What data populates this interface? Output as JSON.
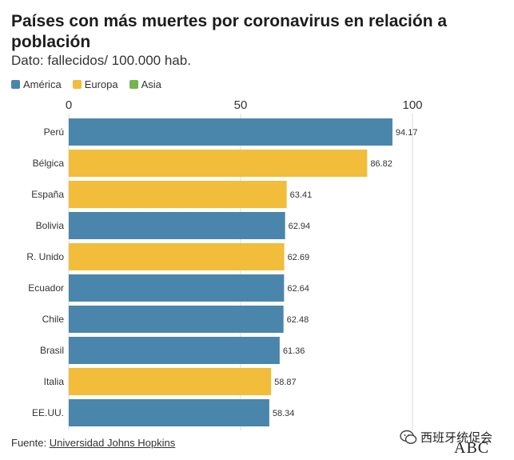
{
  "chart_data": {
    "type": "bar",
    "orientation": "horizontal",
    "title": "Países con más muertes por coronavirus en relación a población",
    "subtitle": "Dato: fallecidos/ 100.000 hab.",
    "categories": [
      "Perú",
      "Bélgica",
      "España",
      "Bolivia",
      "R. Unido",
      "Ecuador",
      "Chile",
      "Brasil",
      "Italia",
      "EE.UU."
    ],
    "values": [
      94.17,
      86.82,
      63.41,
      62.94,
      62.69,
      62.64,
      62.48,
      61.36,
      58.87,
      58.34
    ],
    "value_labels": [
      "94.17",
      "86.82",
      "63.41",
      "62.94",
      "62.69",
      "62.64",
      "62.48",
      "61.36",
      "58.87",
      "58.34"
    ],
    "groups": [
      "América",
      "Europa",
      "Europa",
      "America",
      "Europa",
      "America",
      "America",
      "America",
      "Europa",
      "America"
    ],
    "legend": [
      {
        "name": "América",
        "color": "#4a86ab"
      },
      {
        "name": "Europa",
        "color": "#f1bd3a"
      },
      {
        "name": "Asia",
        "color": "#73b44f"
      }
    ],
    "xlim": [
      0,
      100
    ],
    "xticks": [
      "0",
      "50",
      "100"
    ],
    "xtick_values": [
      0,
      50,
      100
    ],
    "grid": true,
    "legend_position": "top-left"
  },
  "source": {
    "prefix": "Fuente: ",
    "link_text": "Universidad Johns Hopkins"
  },
  "watermark": {
    "text": "西班牙统促会",
    "logo": "ABC",
    "icon": "wechat-icon"
  }
}
